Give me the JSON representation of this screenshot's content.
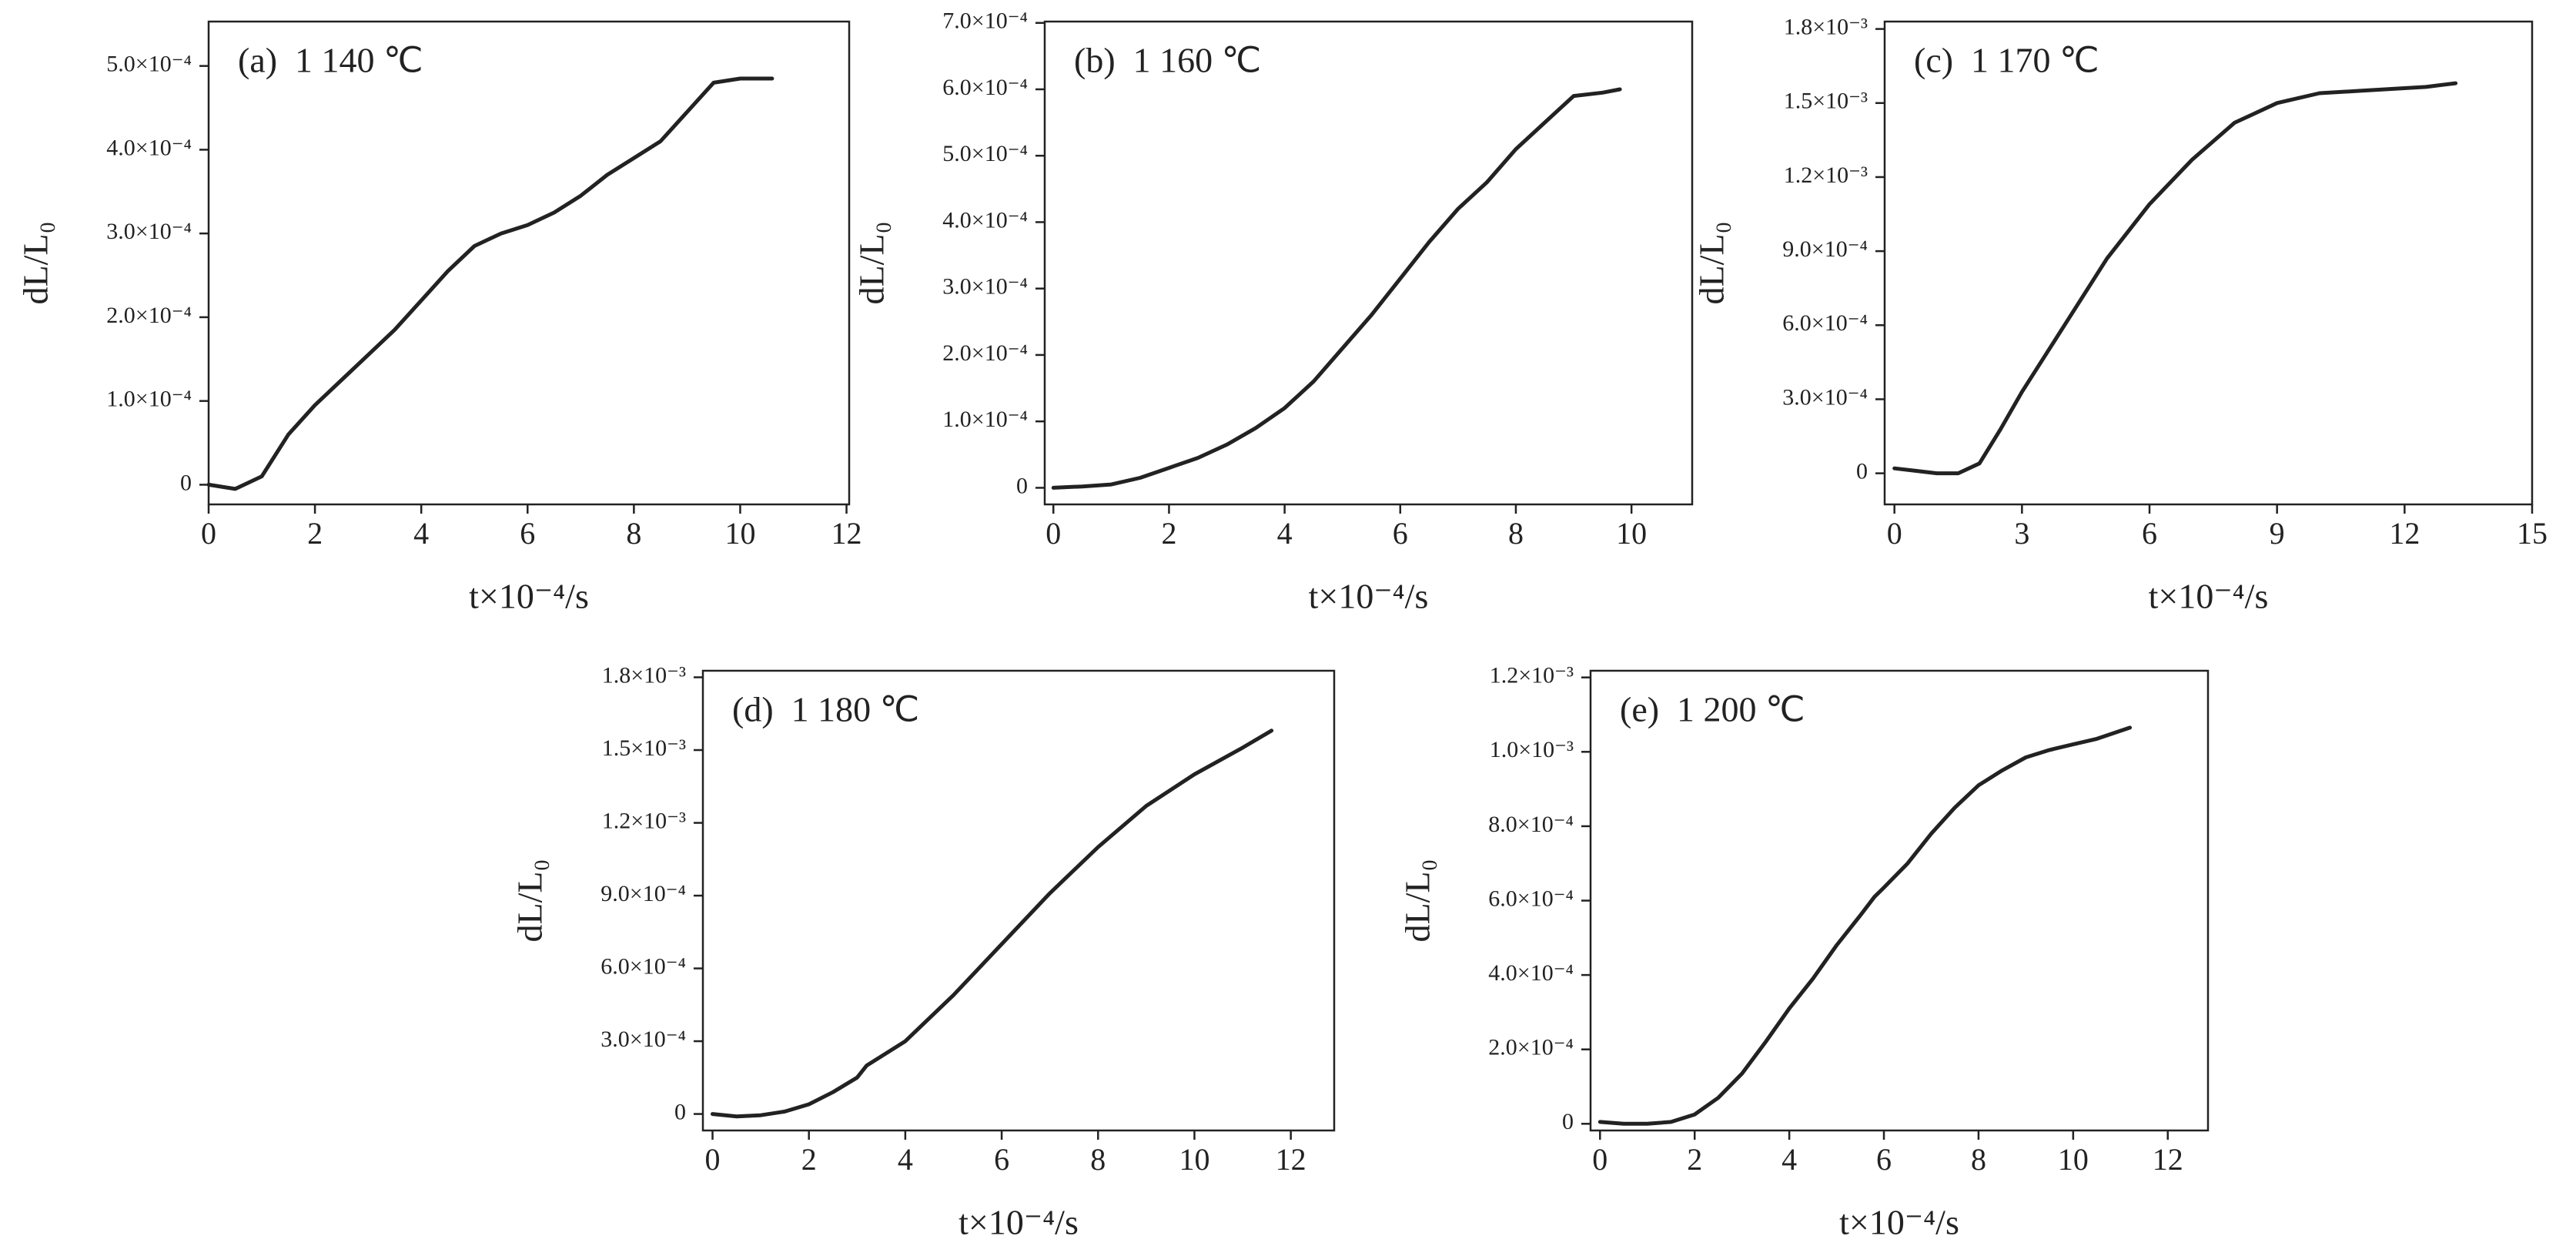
{
  "chart_data": [
    {
      "type": "line",
      "annotation": "(a)  1 140 ℃",
      "xlabel": "t×10⁻⁴/s",
      "ylabel": "dL/L₀",
      "color": "#222222",
      "xlim": [
        0,
        12.05
      ],
      "xticks": [
        0,
        2,
        4,
        6,
        8,
        10,
        12
      ],
      "ylim": [
        -2.35e-05,
        0.000553
      ],
      "yticks": [
        0,
        {
          "value": 0.0001,
          "label": "1.0×10⁻⁴"
        },
        {
          "value": 0.0002,
          "label": "2.0×10⁻⁴"
        },
        {
          "value": 0.0003,
          "label": "3.0×10⁻⁴"
        },
        {
          "value": 0.0004,
          "label": "4.0×10⁻⁴"
        },
        {
          "value": 0.0005,
          "label": "5.0×10⁻⁴"
        }
      ],
      "x": [
        0,
        0.5,
        1,
        1.5,
        2,
        2.5,
        3,
        3.5,
        4,
        4.5,
        5,
        5.5,
        6,
        6.5,
        7,
        7.5,
        8,
        8.5,
        9,
        9.5,
        10,
        10.6
      ],
      "values": [
        0,
        -5e-06,
        1e-05,
        6e-05,
        9.5e-05,
        0.000125,
        0.000155,
        0.000185,
        0.00022,
        0.000255,
        0.000285,
        0.0003,
        0.00031,
        0.000325,
        0.000345,
        0.00037,
        0.00039,
        0.00041,
        0.000445,
        0.00048,
        0.000485,
        0.000485
      ]
    },
    {
      "type": "line",
      "annotation": "(b)  1 160 ℃",
      "xlabel": "t×10⁻⁴/s",
      "ylabel": "dL/L₀",
      "color": "#222222",
      "xlim": [
        -0.15,
        11.05
      ],
      "xticks": [
        0,
        2,
        4,
        6,
        8,
        10
      ],
      "ylim": [
        -2.5e-05,
        0.000702
      ],
      "yticks": [
        0,
        {
          "value": 0.0001,
          "label": "1.0×10⁻⁴"
        },
        {
          "value": 0.0002,
          "label": "2.0×10⁻⁴"
        },
        {
          "value": 0.0003,
          "label": "3.0×10⁻⁴"
        },
        {
          "value": 0.0004,
          "label": "4.0×10⁻⁴"
        },
        {
          "value": 0.0005,
          "label": "5.0×10⁻⁴"
        },
        {
          "value": 0.0006,
          "label": "6.0×10⁻⁴"
        },
        {
          "value": 0.0007,
          "label": "7.0×10⁻⁴"
        }
      ],
      "x": [
        0,
        0.5,
        1,
        1.5,
        2,
        2.5,
        3,
        3.5,
        4,
        4.5,
        5,
        5.5,
        6,
        6.5,
        7,
        7.5,
        8,
        8.5,
        9,
        9.5,
        9.8
      ],
      "values": [
        0,
        2e-06,
        5e-06,
        1.5e-05,
        3e-05,
        4.5e-05,
        6.5e-05,
        9e-05,
        0.00012,
        0.00016,
        0.00021,
        0.00026,
        0.000315,
        0.00037,
        0.00042,
        0.00046,
        0.00051,
        0.00055,
        0.00059,
        0.000595,
        0.0006
      ]
    },
    {
      "type": "line",
      "annotation": "(c)  1 170 ℃",
      "xlabel": "t×10⁻⁴/s",
      "ylabel": "dL/L₀",
      "color": "#222222",
      "xlim": [
        -0.23,
        15
      ],
      "xticks": [
        0,
        3,
        6,
        9,
        12,
        15
      ],
      "ylim": [
        -0.000126,
        0.00183
      ],
      "yticks": [
        0,
        {
          "value": 0.0003,
          "label": "3.0×10⁻⁴"
        },
        {
          "value": 0.0006,
          "label": "6.0×10⁻⁴"
        },
        {
          "value": 0.0009,
          "label": "9.0×10⁻⁴"
        },
        {
          "value": 0.0012,
          "label": "1.2×10⁻³"
        },
        {
          "value": 0.0015,
          "label": "1.5×10⁻³"
        },
        {
          "value": 0.0018,
          "label": "1.8×10⁻³"
        }
      ],
      "x": [
        0,
        0.5,
        1,
        1.5,
        2,
        2.5,
        3,
        4,
        5,
        6,
        7,
        8,
        9,
        10,
        11,
        12,
        12.5,
        13.2
      ],
      "values": [
        2e-05,
        1e-05,
        0,
        0,
        4e-05,
        0.00018,
        0.00033,
        0.0006,
        0.00087,
        0.00109,
        0.00127,
        0.00142,
        0.0015,
        0.00154,
        0.00155,
        0.00156,
        0.001565,
        0.00158
      ]
    },
    {
      "type": "line",
      "annotation": "(d)  1 180 ℃",
      "xlabel": "t×10⁻⁴/s",
      "ylabel": "dL/L₀",
      "color": "#222222",
      "xlim": [
        -0.2,
        12.9
      ],
      "xticks": [
        0,
        2,
        4,
        6,
        8,
        10,
        12
      ],
      "ylim": [
        -6.8e-05,
        0.001827
      ],
      "yticks": [
        0,
        {
          "value": 0.0003,
          "label": "3.0×10⁻⁴"
        },
        {
          "value": 0.0006,
          "label": "6.0×10⁻⁴"
        },
        {
          "value": 0.0009,
          "label": "9.0×10⁻⁴"
        },
        {
          "value": 0.0012,
          "label": "1.2×10⁻³"
        },
        {
          "value": 0.0015,
          "label": "1.5×10⁻³"
        },
        {
          "value": 0.0018,
          "label": "1.8×10⁻³"
        }
      ],
      "x": [
        0,
        0.5,
        1,
        1.5,
        2,
        2.5,
        3,
        3.2,
        4,
        5,
        6,
        7,
        8,
        9,
        10,
        11,
        11.6
      ],
      "values": [
        0,
        -1e-05,
        -5e-06,
        1e-05,
        4e-05,
        9e-05,
        0.00015,
        0.0002,
        0.0003,
        0.00049,
        0.0007,
        0.00091,
        0.0011,
        0.00127,
        0.0014,
        0.00151,
        0.00158
      ]
    },
    {
      "type": "line",
      "annotation": "(e)  1 200 ℃",
      "xlabel": "t×10⁻⁴/s",
      "ylabel": "dL/L₀",
      "color": "#222222",
      "xlim": [
        -0.2,
        12.85
      ],
      "xticks": [
        0,
        2,
        4,
        6,
        8,
        10,
        12
      ],
      "ylim": [
        -1.8e-05,
        0.001218
      ],
      "yticks": [
        0,
        {
          "value": 0.0002,
          "label": "2.0×10⁻⁴"
        },
        {
          "value": 0.0004,
          "label": "4.0×10⁻⁴"
        },
        {
          "value": 0.0006,
          "label": "6.0×10⁻⁴"
        },
        {
          "value": 0.0008,
          "label": "8.0×10⁻⁴"
        },
        {
          "value": 0.001,
          "label": "1.0×10⁻³"
        },
        {
          "value": 0.0012,
          "label": "1.2×10⁻³"
        }
      ],
      "x": [
        0,
        0.5,
        1,
        1.5,
        2,
        2.5,
        3,
        3.5,
        4,
        4.5,
        5,
        5.5,
        5.8,
        6,
        6.5,
        7,
        7.5,
        8,
        8.5,
        9,
        9.5,
        10,
        10.5,
        11.2
      ],
      "values": [
        5e-06,
        0,
        0,
        5e-06,
        2.5e-05,
        7e-05,
        0.000135,
        0.00022,
        0.00031,
        0.00039,
        0.00048,
        0.00056,
        0.00061,
        0.000635,
        0.0007,
        0.00078,
        0.00085,
        0.00091,
        0.00095,
        0.000985,
        0.001005,
        0.00102,
        0.001035,
        0.001065
      ]
    }
  ]
}
